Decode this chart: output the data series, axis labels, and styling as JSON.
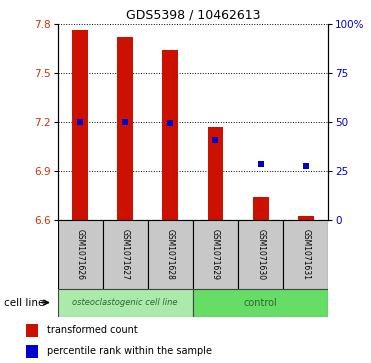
{
  "title": "GDS5398 / 10462613",
  "samples": [
    "GSM1071626",
    "GSM1071627",
    "GSM1071628",
    "GSM1071629",
    "GSM1071630",
    "GSM1071631"
  ],
  "red_top": [
    7.76,
    7.72,
    7.64,
    7.17,
    6.74,
    6.62
  ],
  "red_bottom": [
    6.6,
    6.6,
    6.6,
    6.6,
    6.6,
    6.6
  ],
  "blue_y": [
    7.2,
    7.2,
    7.19,
    7.09,
    6.94,
    6.93
  ],
  "ylim": [
    6.6,
    7.8
  ],
  "yticks_left": [
    6.6,
    6.9,
    7.2,
    7.5,
    7.8
  ],
  "yticks_right": [
    0,
    25,
    50,
    75,
    100
  ],
  "ytick_right_labels": [
    "0",
    "25",
    "50",
    "75",
    "100%"
  ],
  "group_labels": [
    "osteoclastogenic cell line",
    "control"
  ],
  "group_colors": [
    "#AAEAAA",
    "#66DD66"
  ],
  "cell_line_label": "cell line",
  "legend_red": "transformed count",
  "legend_blue": "percentile rank within the sample",
  "bar_color": "#CC1100",
  "dot_color": "#0000CC",
  "tick_area_bg": "#C8C8C8",
  "bar_width": 0.35
}
